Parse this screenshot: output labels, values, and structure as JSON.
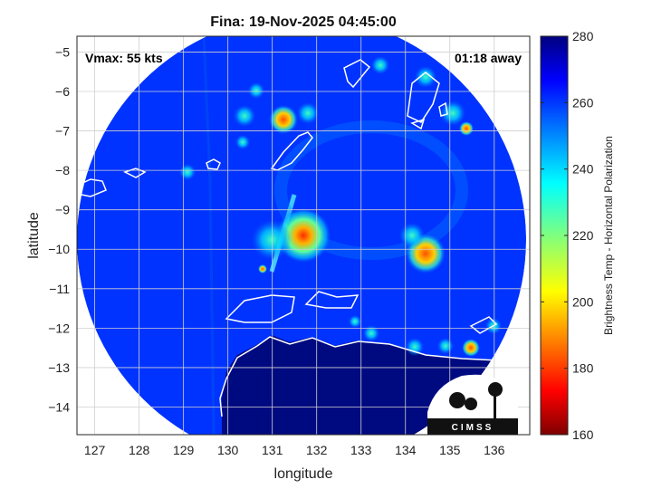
{
  "chart_data": {
    "type": "heatmap",
    "title": "Fina: 19-Nov-2025 04:45:00",
    "xlabel": "longitude",
    "ylabel": "latitude",
    "xlim": [
      126.6,
      136.8
    ],
    "ylim": [
      -14.7,
      -4.6
    ],
    "xticks": [
      127,
      128,
      129,
      130,
      131,
      132,
      133,
      134,
      135,
      136
    ],
    "yticks": [
      -5,
      -6,
      -7,
      -8,
      -9,
      -10,
      -11,
      -12,
      -13,
      -14
    ],
    "grid": true,
    "annotations": {
      "vmax": "Vmax: 55 kts",
      "away": "01:18 away"
    },
    "colorbar": {
      "label": "Brightness Temp - Horizontal Polarization",
      "min": 160,
      "max": 280,
      "ticks": [
        160,
        180,
        200,
        220,
        240,
        260,
        280
      ],
      "colormap": "jet"
    },
    "swath": {
      "center_lon": 131.6,
      "center_lat": -9.8,
      "radius_deg": 5.6
    },
    "features": [
      {
        "name": "storm core",
        "lon": 131.4,
        "lat": -9.9,
        "tb": 188
      },
      {
        "name": "rainband east",
        "lon": 134.9,
        "lat": -10.3,
        "tb": 200
      },
      {
        "name": "convection north",
        "lon": 131.2,
        "lat": -6.9,
        "tb": 205
      },
      {
        "name": "coastal convection",
        "lon": 134.8,
        "lat": -12.6,
        "tb": 225
      }
    ],
    "land_tb": 275,
    "ocean_tb": 258
  },
  "logo": {
    "text": "CIMSS"
  },
  "colors": {
    "land": "#000a80",
    "ocean": "#0033ff",
    "coastline": "#ffffff",
    "background": "#ffffff"
  }
}
